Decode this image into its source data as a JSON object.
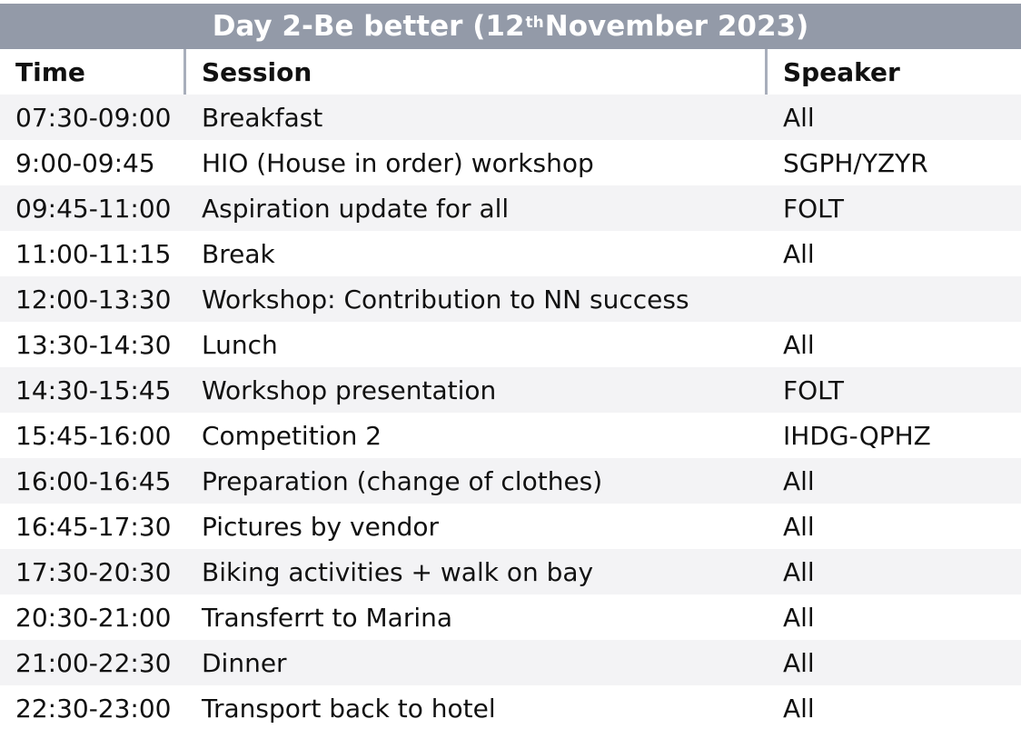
{
  "title": {
    "prefix": "Day 2-Be better (12",
    "sup": "th",
    "suffix": " November 2023)"
  },
  "columns": {
    "time": "Time",
    "session": "Session",
    "speaker": "Speaker"
  },
  "rows": [
    {
      "time": "07:30-09:00",
      "session": "Breakfast",
      "speaker": "All"
    },
    {
      "time": "9:00-09:45",
      "session": "HIO (House in order) workshop",
      "speaker": "SGPH/YZYR"
    },
    {
      "time": "09:45-11:00",
      "session": "Aspiration update for all",
      "speaker": "FOLT"
    },
    {
      "time": "11:00-11:15",
      "session": "Break",
      "speaker": "All"
    },
    {
      "time": "12:00-13:30",
      "session": "Workshop: Contribution to NN success",
      "speaker": ""
    },
    {
      "time": "13:30-14:30",
      "session": "Lunch",
      "speaker": "All"
    },
    {
      "time": "14:30-15:45",
      "session": "Workshop presentation",
      "speaker": "FOLT"
    },
    {
      "time": "15:45-16:00",
      "session": "Competition 2",
      "speaker": "IHDG-QPHZ"
    },
    {
      "time": "16:00-16:45",
      "session": "Preparation (change of clothes)",
      "speaker": "All"
    },
    {
      "time": "16:45-17:30",
      "session": "Pictures by vendor",
      "speaker": "All"
    },
    {
      "time": "17:30-20:30",
      "session": "Biking activities + walk on bay",
      "speaker": "All"
    },
    {
      "time": "20:30-21:00",
      "session": "Transferrt to Marina",
      "speaker": "All"
    },
    {
      "time": "21:00-22:30",
      "session": "Dinner",
      "speaker": "All"
    },
    {
      "time": "22:30-23:00",
      "session": "Transport back to hotel",
      "speaker": "All"
    }
  ]
}
